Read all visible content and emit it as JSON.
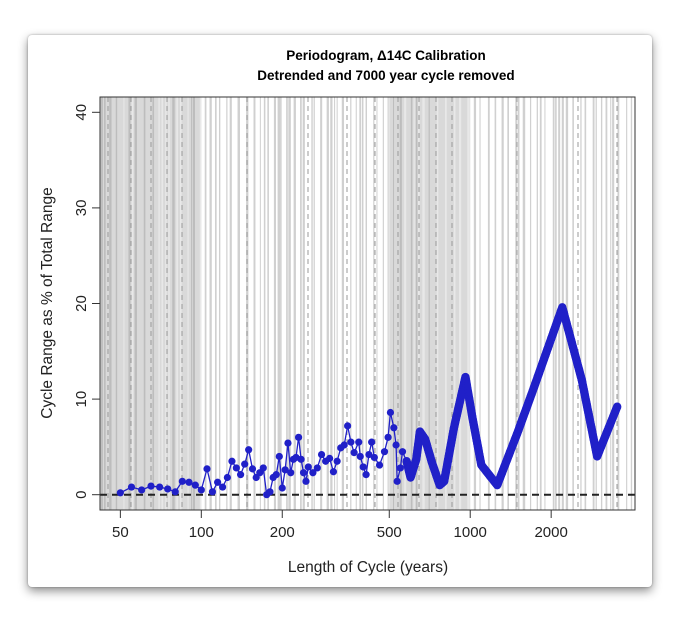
{
  "chart_data": {
    "type": "line",
    "title": "Periodogram, Δ14C Calibration",
    "subtitle": "Detrended and 7000 year cycle removed",
    "xlabel": "Length of Cycle (years)",
    "ylabel": "Cycle Range as % of Total Range",
    "x_scale": "log",
    "xlim": [
      42,
      4100
    ],
    "ylim": [
      -1.6,
      41.6
    ],
    "x_ticks": [
      "50",
      "100",
      "200",
      "500",
      "1000",
      "2000"
    ],
    "x_tick_values": [
      50,
      100,
      200,
      500,
      1000,
      2000
    ],
    "y_ticks": [
      "0",
      "10",
      "20",
      "30",
      "40"
    ],
    "y_tick_values": [
      0,
      10,
      20,
      30,
      40
    ],
    "reference_line_y": 0,
    "shaded_ranges": [
      [
        42,
        100
      ],
      [
        500,
        1000
      ]
    ],
    "grid": "vertical lines",
    "series_color": "#2020c8",
    "x": [
      50,
      55,
      60,
      65,
      70,
      75,
      80,
      85,
      90,
      95,
      100,
      105,
      110,
      115,
      120,
      125,
      130,
      135,
      140,
      145,
      150,
      155,
      160,
      165,
      170,
      175,
      180,
      185,
      190,
      195,
      200,
      205,
      210,
      215,
      220,
      225,
      230,
      235,
      240,
      245,
      250,
      260,
      270,
      280,
      290,
      300,
      310,
      320,
      330,
      340,
      350,
      360,
      370,
      385,
      390,
      400,
      410,
      420,
      430,
      440,
      460,
      480,
      495,
      505,
      520,
      530,
      535,
      550,
      560,
      580,
      600,
      630,
      650,
      680,
      720,
      770,
      800,
      870,
      960,
      1020,
      1100,
      1260,
      1500,
      1715,
      2200,
      2600,
      2965,
      3520
    ],
    "y": [
      0.2,
      0.8,
      0.5,
      0.9,
      0.8,
      0.6,
      0.3,
      1.4,
      1.3,
      1.0,
      0.5,
      2.7,
      0.3,
      1.3,
      0.8,
      1.8,
      3.5,
      2.8,
      2.1,
      3.2,
      4.7,
      2.7,
      1.8,
      2.3,
      2.8,
      0.0,
      0.3,
      1.8,
      2.1,
      4.0,
      0.7,
      2.6,
      5.4,
      2.3,
      3.7,
      3.9,
      6.0,
      3.7,
      2.3,
      1.4,
      2.9,
      2.3,
      2.8,
      4.2,
      3.5,
      3.8,
      2.4,
      3.5,
      4.9,
      5.2,
      7.2,
      5.5,
      4.4,
      5.5,
      4.0,
      2.9,
      2.1,
      4.2,
      5.5,
      3.9,
      3.1,
      4.5,
      6.0,
      8.6,
      7.0,
      5.2,
      1.4,
      2.8,
      4.5,
      3.5,
      1.8,
      3.7,
      6.6,
      5.8,
      3.4,
      1.0,
      1.4,
      7.0,
      12.3,
      8.0,
      3.1,
      1.0,
      6.5,
      11.0,
      19.6,
      12.0,
      4.0,
      9.2
    ]
  }
}
